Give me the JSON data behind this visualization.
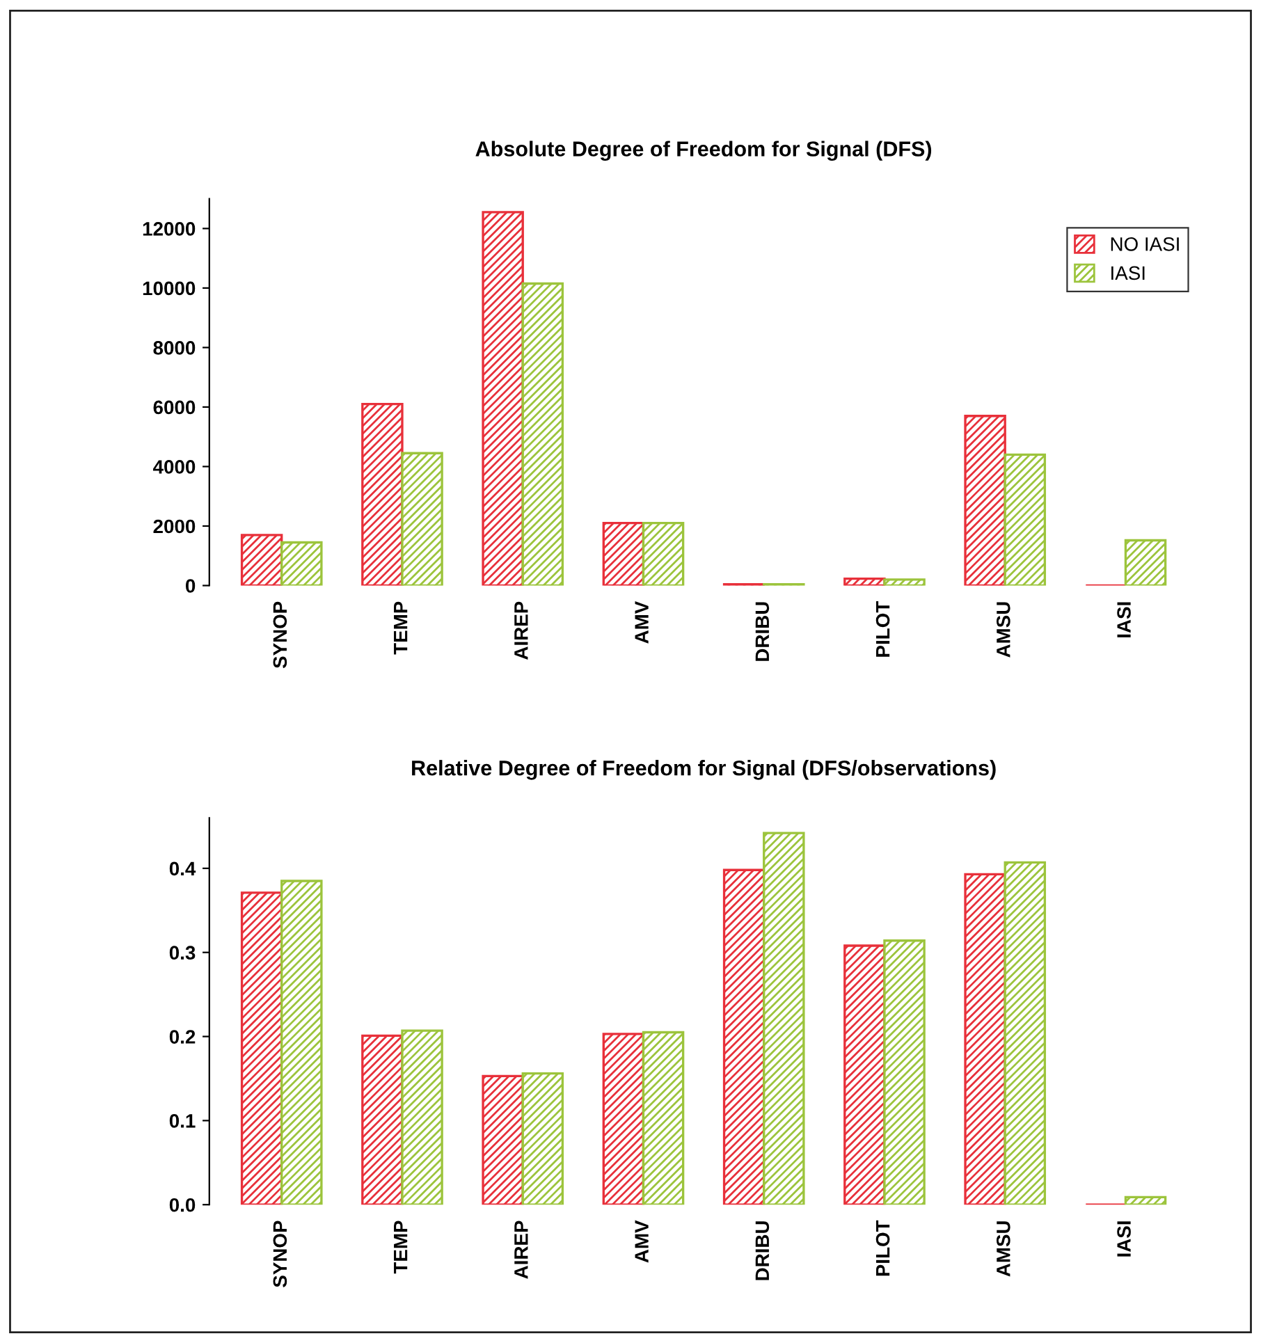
{
  "chart_data": [
    {
      "type": "bar",
      "title": "Absolute Degree of Freedom for Signal (DFS)",
      "categories": [
        "SYNOP",
        "TEMP",
        "AIREP",
        "AMV",
        "DRIBU",
        "PILOT",
        "AMSU",
        "IASI"
      ],
      "series": [
        {
          "name": "NO IASI",
          "color": "#e8303a",
          "values": [
            1700,
            6100,
            12550,
            2100,
            40,
            230,
            5700,
            0
          ]
        },
        {
          "name": "IASI",
          "color": "#9cc43c",
          "values": [
            1450,
            4450,
            10150,
            2100,
            40,
            200,
            4400,
            1520
          ]
        }
      ],
      "ylim": [
        0,
        13000
      ],
      "yticks": [
        0,
        2000,
        4000,
        6000,
        8000,
        10000,
        12000
      ],
      "grid": false,
      "legend": "top right"
    },
    {
      "type": "bar",
      "title": "Relative Degree of Freedom for Signal (DFS/observations)",
      "categories": [
        "SYNOP",
        "TEMP",
        "AIREP",
        "AMV",
        "DRIBU",
        "PILOT",
        "AMSU",
        "IASI"
      ],
      "series": [
        {
          "color": "#e8303a",
          "values": [
            0.371,
            0.201,
            0.153,
            0.203,
            0.398,
            0.308,
            0.393,
            0.0
          ]
        },
        {
          "color": "#9cc43c",
          "values": [
            0.385,
            0.207,
            0.156,
            0.205,
            0.442,
            0.314,
            0.407,
            0.009
          ]
        }
      ],
      "ylim": [
        0,
        0.46
      ],
      "yticks": [
        {
          "value": 0,
          "label": "0.0"
        },
        0.1,
        0.2,
        0.3,
        0.4
      ],
      "grid": false,
      "legend": false
    }
  ]
}
